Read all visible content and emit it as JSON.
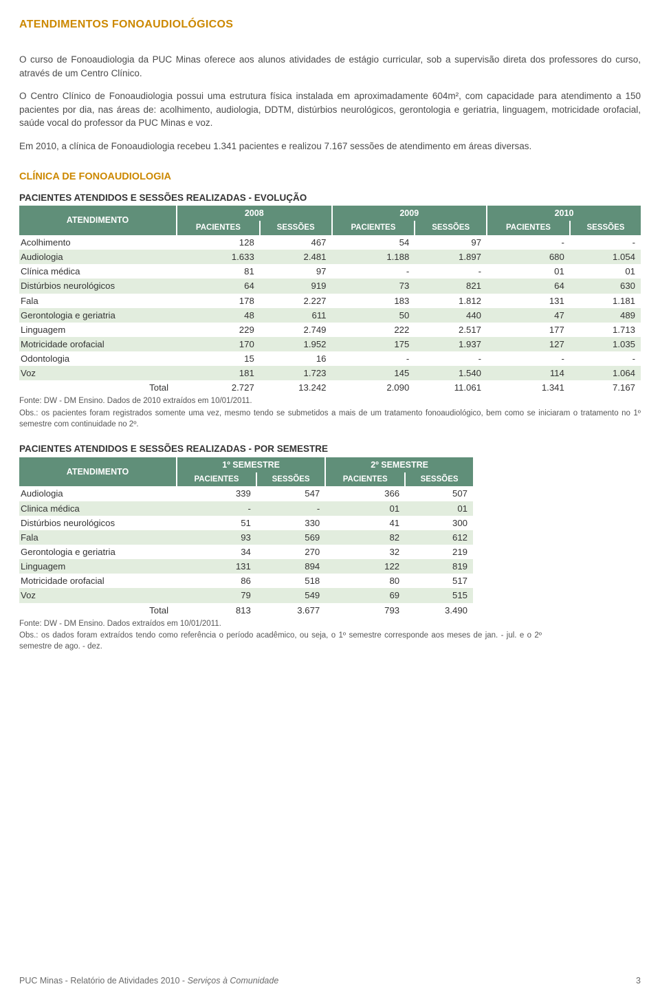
{
  "colors": {
    "accent": "#cc8800",
    "table_header_bg": "#608f79",
    "table_header_text": "#ffffff",
    "row_alt_bg": "#e2edde",
    "body_text": "#4a4a4a"
  },
  "title": "ATENDIMENTOS FONOAUDIOLÓGICOS",
  "para1": "O curso de Fonoaudiologia da PUC Minas oferece aos alunos atividades de estágio curricular, sob a supervisão direta dos professores do curso, através de um Centro Clínico.",
  "para2": "O Centro Clínico de Fonoaudiologia possui uma estrutura física instalada em aproximadamente 604m², com capacidade para atendimento a 150 pacientes por dia, nas áreas de: acolhimento, audiologia, DDTM, distúrbios neurológicos, gerontologia e geriatria, linguagem, motricidade orofacial, saúde vocal do professor da PUC Minas e voz.",
  "para3": "Em 2010, a clínica de Fonoaudiologia recebeu 1.341 pacientes e realizou 7.167 sessões de atendimento em áreas diversas.",
  "section_title": "CLÍNICA DE FONOAUDIOLOGIA",
  "table1": {
    "caption": "PACIENTES ATENDIDOS E SESSÕES REALIZADAS - EVOLUÇÃO",
    "header_atend": "ATENDIMENTO",
    "years": [
      "2008",
      "2009",
      "2010"
    ],
    "sub_pac": "PACIENTES",
    "sub_ses": "SESSÕES",
    "rows": [
      {
        "label": "Acolhimento",
        "v": [
          "128",
          "467",
          "54",
          "97",
          "-",
          "-"
        ]
      },
      {
        "label": "Audiologia",
        "v": [
          "1.633",
          "2.481",
          "1.188",
          "1.897",
          "680",
          "1.054"
        ]
      },
      {
        "label": "Clínica médica",
        "v": [
          "81",
          "97",
          "-",
          "-",
          "01",
          "01"
        ]
      },
      {
        "label": "Distúrbios neurológicos",
        "v": [
          "64",
          "919",
          "73",
          "821",
          "64",
          "630"
        ]
      },
      {
        "label": "Fala",
        "v": [
          "178",
          "2.227",
          "183",
          "1.812",
          "131",
          "1.181"
        ]
      },
      {
        "label": "Gerontologia e geriatria",
        "v": [
          "48",
          "611",
          "50",
          "440",
          "47",
          "489"
        ]
      },
      {
        "label": "Linguagem",
        "v": [
          "229",
          "2.749",
          "222",
          "2.517",
          "177",
          "1.713"
        ]
      },
      {
        "label": "Motricidade orofacial",
        "v": [
          "170",
          "1.952",
          "175",
          "1.937",
          "127",
          "1.035"
        ]
      },
      {
        "label": "Odontologia",
        "v": [
          "15",
          "16",
          "-",
          "-",
          "-",
          "-"
        ]
      },
      {
        "label": "Voz",
        "v": [
          "181",
          "1.723",
          "145",
          "1.540",
          "114",
          "1.064"
        ]
      }
    ],
    "total_label": "Total",
    "total": [
      "2.727",
      "13.242",
      "2.090",
      "11.061",
      "1.341",
      "7.167"
    ],
    "footnote1": "Fonte: DW - DM Ensino. Dados de 2010 extraídos em 10/01/2011.",
    "footnote2": "Obs.: os pacientes foram registrados somente uma vez, mesmo tendo se submetidos a mais de um tratamento fonoaudiológico, bem como se iniciaram o tratamento no 1º semestre com continuidade no 2º."
  },
  "table2": {
    "caption": "PACIENTES ATENDIDOS E SESSÕES REALIZADAS - POR SEMESTRE",
    "header_atend": "ATENDIMENTO",
    "semesters": [
      "1º SEMESTRE",
      "2º SEMESTRE"
    ],
    "sub_pac": "PACIENTES",
    "sub_ses": "SESSÕES",
    "rows": [
      {
        "label": "Audiologia",
        "v": [
          "339",
          "547",
          "366",
          "507"
        ]
      },
      {
        "label": "Clinica médica",
        "v": [
          "-",
          "-",
          "01",
          "01"
        ]
      },
      {
        "label": "Distúrbios neurológicos",
        "v": [
          "51",
          "330",
          "41",
          "300"
        ]
      },
      {
        "label": "Fala",
        "v": [
          "93",
          "569",
          "82",
          "612"
        ]
      },
      {
        "label": "Gerontologia e geriatria",
        "v": [
          "34",
          "270",
          "32",
          "219"
        ]
      },
      {
        "label": "Linguagem",
        "v": [
          "131",
          "894",
          "122",
          "819"
        ]
      },
      {
        "label": "Motricidade orofacial",
        "v": [
          "86",
          "518",
          "80",
          "517"
        ]
      },
      {
        "label": "Voz",
        "v": [
          "79",
          "549",
          "69",
          "515"
        ]
      }
    ],
    "total_label": "Total",
    "total": [
      "813",
      "3.677",
      "793",
      "3.490"
    ],
    "footnote1": "Fonte: DW - DM Ensino. Dados extraídos em 10/01/2011.",
    "footnote2": "Obs.: os dados foram extraídos tendo como referência o período acadêmico, ou seja, o 1º semestre corresponde aos meses de jan. - jul. e o 2º semestre de ago. - dez."
  },
  "footer_left": "PUC Minas - Relatório de Atividades 2010 - ",
  "footer_left_em": "Serviços à Comunidade",
  "footer_page": "3"
}
